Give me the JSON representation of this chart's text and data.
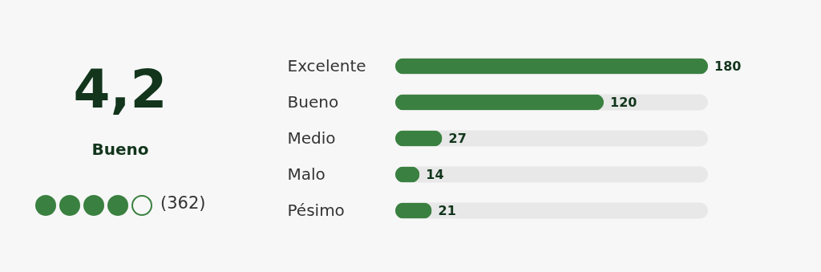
{
  "chart_data": {
    "type": "bar",
    "orientation": "horizontal",
    "categories": [
      "Excelente",
      "Bueno",
      "Medio",
      "Malo",
      "Pésimo"
    ],
    "values": [
      180,
      120,
      27,
      14,
      21
    ],
    "color": "#3a8040",
    "tick_labels": "y",
    "data_labels": true,
    "annotations": [
      "4,2",
      "Bueno",
      "(362)"
    ]
  }
}
